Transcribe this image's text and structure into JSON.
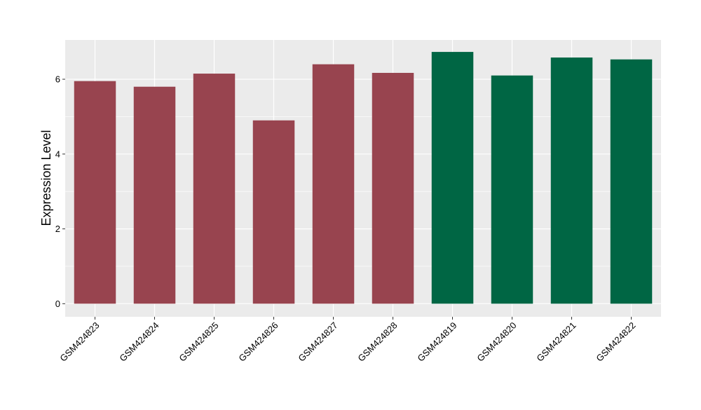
{
  "chart_data": {
    "type": "bar",
    "title": "",
    "xlabel": "",
    "ylabel": "Expression Level",
    "categories": [
      "GSM424823",
      "GSM424824",
      "GSM424825",
      "GSM424826",
      "GSM424827",
      "GSM424828",
      "GSM424819",
      "GSM424820",
      "GSM424821",
      "GSM424822"
    ],
    "values": [
      5.95,
      5.8,
      6.15,
      4.9,
      6.4,
      6.17,
      6.73,
      6.1,
      6.58,
      6.53
    ],
    "groups": [
      0,
      0,
      0,
      0,
      0,
      0,
      1,
      1,
      1,
      1
    ],
    "group_colors": [
      "#98444f",
      "#006644"
    ],
    "ylim": [
      -0.35,
      7.05
    ],
    "yticks": [
      0,
      2,
      4,
      6
    ],
    "grid": true,
    "legend": "none",
    "panel_background": "#ebebeb",
    "grid_color": "#ffffff"
  }
}
